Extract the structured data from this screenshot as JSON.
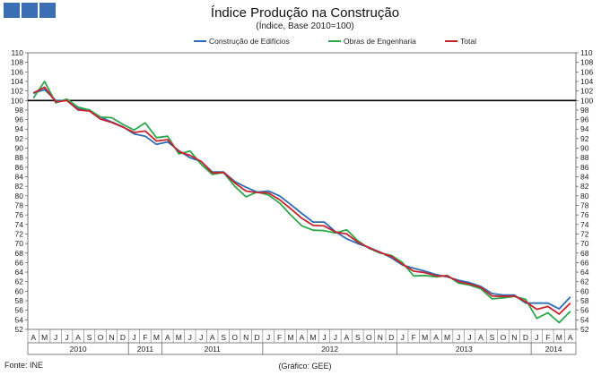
{
  "header": {
    "title": "Índice Produção na Construção",
    "subtitle": "(Índice, Base 2010=100)"
  },
  "footer": {
    "source": "Fonte: INE",
    "credit": "(Gráfico: GEE)"
  },
  "logo": {
    "squares": 3,
    "color": "#3c6eb4"
  },
  "chart_data": {
    "type": "line",
    "x_month_labels": [
      "A",
      "M",
      "J",
      "J",
      "A",
      "S",
      "O",
      "N",
      "D",
      "J",
      "F",
      "M",
      "A",
      "M",
      "J",
      "J",
      "A",
      "S",
      "O",
      "N",
      "D",
      "J",
      "F",
      "M",
      "A",
      "M",
      "J",
      "J",
      "A",
      "S",
      "O",
      "N",
      "D",
      "J",
      "F",
      "M",
      "A",
      "M",
      "J",
      "J",
      "A",
      "S",
      "O",
      "N",
      "D",
      "J",
      "F",
      "M",
      "A"
    ],
    "year_groups": [
      {
        "label": "2010",
        "count": 9
      },
      {
        "label": "2011",
        "count": 3
      },
      {
        "label": "2011",
        "count": 9
      },
      {
        "label": "2012",
        "count": 12
      },
      {
        "label": "2013",
        "count": 12
      },
      {
        "label": "2014",
        "count": 4
      }
    ],
    "ylim": [
      52,
      110
    ],
    "y_ticks": [
      52,
      54,
      56,
      58,
      60,
      62,
      64,
      66,
      68,
      70,
      72,
      74,
      76,
      78,
      80,
      82,
      84,
      86,
      88,
      90,
      92,
      94,
      96,
      98,
      100,
      102,
      104,
      106,
      108,
      110
    ],
    "reference_line": 100,
    "legend_position": "top",
    "series": [
      {
        "name": "Construção de Edifícios",
        "color": "#2e6db4",
        "values": [
          101.5,
          102.3,
          100.0,
          100.0,
          98.3,
          98.0,
          96.5,
          95.5,
          94.5,
          93.0,
          92.5,
          90.8,
          91.3,
          89.5,
          88.0,
          87.2,
          85.0,
          85.0,
          83.0,
          81.8,
          80.8,
          81.0,
          80.0,
          78.2,
          76.3,
          74.5,
          74.5,
          72.5,
          71.0,
          70.0,
          69.2,
          68.2,
          67.0,
          65.5,
          64.8,
          64.2,
          63.5,
          63.0,
          62.3,
          61.8,
          61.0,
          59.5,
          59.2,
          59.2,
          57.5,
          57.5,
          57.5,
          56.3,
          58.8
        ]
      },
      {
        "name": "Obras de Engenharia",
        "color": "#2ea84a",
        "values": [
          100.5,
          104.0,
          99.5,
          100.3,
          98.6,
          98.0,
          96.5,
          96.4,
          95.0,
          93.8,
          95.3,
          92.2,
          92.5,
          88.8,
          89.4,
          86.6,
          84.5,
          84.9,
          82.0,
          79.8,
          80.8,
          80.2,
          78.5,
          76.0,
          73.7,
          72.8,
          72.7,
          72.2,
          72.9,
          70.6,
          69.0,
          68.0,
          67.5,
          66.0,
          63.2,
          63.3,
          63.0,
          63.3,
          61.7,
          61.3,
          60.5,
          58.4,
          58.6,
          58.9,
          58.3,
          54.3,
          55.5,
          53.4,
          55.8
        ]
      },
      {
        "name": "Total",
        "color": "#c8232c",
        "values": [
          101.6,
          102.8,
          99.7,
          100.0,
          98.0,
          97.8,
          96.1,
          95.4,
          94.4,
          93.3,
          93.6,
          91.5,
          91.8,
          89.2,
          88.5,
          87.2,
          84.8,
          84.9,
          82.7,
          81.0,
          80.7,
          80.6,
          79.2,
          77.3,
          75.3,
          73.8,
          73.7,
          72.4,
          72.0,
          70.3,
          69.1,
          68.1,
          67.3,
          65.6,
          64.2,
          63.9,
          63.2,
          63.2,
          62.0,
          61.5,
          60.8,
          59.0,
          58.9,
          59.0,
          57.8,
          56.2,
          56.8,
          55.2,
          57.5
        ]
      }
    ]
  }
}
